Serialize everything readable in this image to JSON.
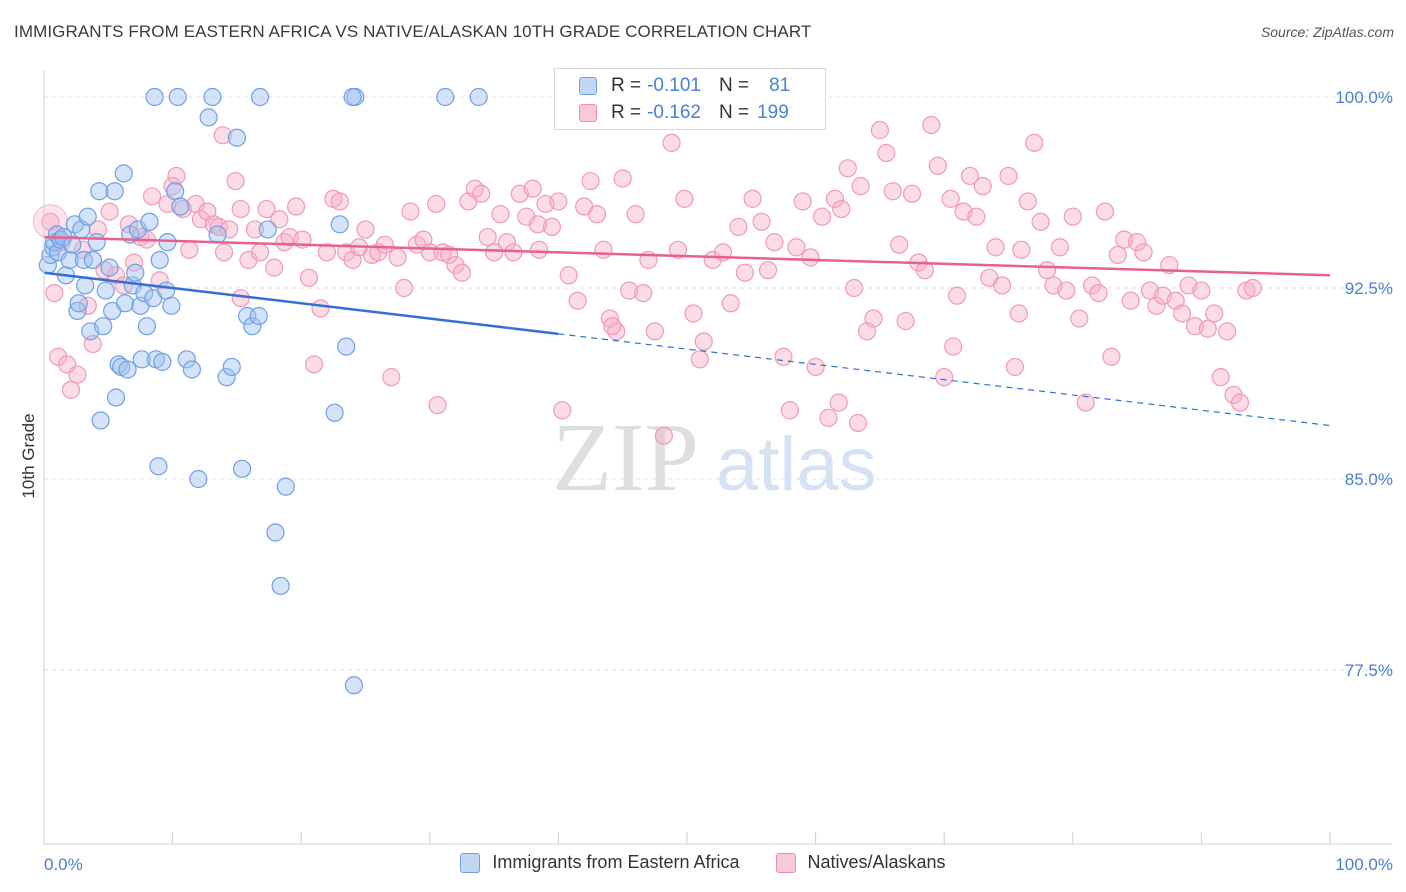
{
  "header": {
    "title": "IMMIGRANTS FROM EASTERN AFRICA VS NATIVE/ALASKAN 10TH GRADE CORRELATION CHART",
    "source": "Source: ZipAtlas.com"
  },
  "watermark": {
    "zip": "ZIP",
    "atlas": "atlas"
  },
  "legend": {
    "rows": [
      {
        "r_label": "R =",
        "r_value": "-0.101",
        "n_label": "N =",
        "n_value": "81",
        "color": "#6fa0e6"
      },
      {
        "r_label": "R =",
        "r_value": "-0.162",
        "n_label": "N =",
        "n_value": "199",
        "color": "#f08cad"
      }
    ]
  },
  "bottom_legend": {
    "items": [
      {
        "label": "Immigrants from Eastern Africa",
        "color": "#6fa0e6"
      },
      {
        "label": "Natives/Alaskans",
        "color": "#f08cad"
      }
    ]
  },
  "chart_data": {
    "type": "scatter",
    "title": "IMMIGRANTS FROM EASTERN AFRICA VS NATIVE/ALASKAN 10TH GRADE CORRELATION CHART",
    "xlabel": "",
    "ylabel": "10th Grade",
    "xlim": [
      0,
      100
    ],
    "ylim": [
      70,
      101.5
    ],
    "x_tick_labels": [
      {
        "value": 0,
        "label": "0.0%"
      },
      {
        "value": 100,
        "label": "100.0%"
      }
    ],
    "y_ticks": [
      {
        "value": 100,
        "label": "100.0%"
      },
      {
        "value": 92.5,
        "label": "92.5%"
      },
      {
        "value": 85,
        "label": "85.0%"
      },
      {
        "value": 77.5,
        "label": "77.5%"
      }
    ],
    "grid": "horizontal dashed",
    "series": [
      {
        "name": "Immigrants from Eastern Africa",
        "color": "#6fa0e6",
        "trend": {
          "x0": 0,
          "y0": 93.1,
          "x1": 40,
          "y1": 90.7,
          "dashed_to_x": 100,
          "dashed_to_y": 87.1,
          "color": "#2f6fd6"
        },
        "points": [
          [
            0.3,
            93.4
          ],
          [
            0.5,
            93.8
          ],
          [
            0.7,
            94.1
          ],
          [
            0.8,
            94.3
          ],
          [
            1.0,
            94.6
          ],
          [
            1.1,
            93.9
          ],
          [
            1.3,
            94.4
          ],
          [
            1.5,
            94.5
          ],
          [
            1.7,
            93.0
          ],
          [
            2.0,
            93.6
          ],
          [
            2.2,
            94.2
          ],
          [
            2.4,
            95.0
          ],
          [
            2.6,
            91.6
          ],
          [
            2.7,
            91.9
          ],
          [
            2.9,
            94.8
          ],
          [
            3.1,
            93.6
          ],
          [
            3.2,
            92.6
          ],
          [
            3.4,
            95.3
          ],
          [
            3.6,
            90.8
          ],
          [
            3.8,
            93.6
          ],
          [
            4.1,
            94.3
          ],
          [
            4.3,
            96.3
          ],
          [
            4.4,
            87.3
          ],
          [
            4.6,
            91.0
          ],
          [
            4.8,
            92.4
          ],
          [
            5.1,
            93.3
          ],
          [
            5.3,
            91.6
          ],
          [
            5.5,
            96.3
          ],
          [
            5.6,
            88.2
          ],
          [
            5.8,
            89.5
          ],
          [
            6.0,
            89.4
          ],
          [
            6.2,
            97.0
          ],
          [
            6.3,
            91.9
          ],
          [
            6.5,
            89.3
          ],
          [
            6.7,
            94.6
          ],
          [
            6.9,
            92.6
          ],
          [
            7.1,
            93.1
          ],
          [
            7.3,
            94.8
          ],
          [
            7.5,
            91.8
          ],
          [
            7.6,
            89.7
          ],
          [
            7.8,
            92.3
          ],
          [
            8.0,
            91.0
          ],
          [
            8.2,
            95.1
          ],
          [
            8.5,
            92.1
          ],
          [
            8.7,
            89.7
          ],
          [
            8.9,
            85.5
          ],
          [
            9.0,
            93.6
          ],
          [
            9.2,
            89.6
          ],
          [
            9.5,
            92.4
          ],
          [
            9.6,
            94.3
          ],
          [
            9.9,
            91.8
          ],
          [
            10.2,
            96.3
          ],
          [
            10.6,
            95.7
          ],
          [
            11.1,
            89.7
          ],
          [
            11.5,
            89.3
          ],
          [
            12.0,
            85.0
          ],
          [
            12.8,
            99.2
          ],
          [
            13.1,
            100.0
          ],
          [
            13.5,
            94.6
          ],
          [
            14.2,
            89.0
          ],
          [
            14.6,
            89.4
          ],
          [
            15.0,
            98.4
          ],
          [
            15.4,
            85.4
          ],
          [
            15.8,
            91.4
          ],
          [
            16.2,
            91.0
          ],
          [
            16.7,
            91.4
          ],
          [
            17.4,
            94.8
          ],
          [
            18.0,
            82.9
          ],
          [
            18.4,
            80.8
          ],
          [
            18.8,
            84.7
          ],
          [
            22.6,
            87.6
          ],
          [
            23.0,
            95.0
          ],
          [
            23.5,
            90.2
          ],
          [
            24.1,
            76.9
          ],
          [
            31.2,
            100.0
          ],
          [
            33.8,
            100.0
          ],
          [
            8.6,
            100.0
          ],
          [
            10.4,
            100.0
          ],
          [
            16.8,
            100.0
          ],
          [
            24.2,
            100.0
          ],
          [
            24.0,
            100.0
          ]
        ]
      },
      {
        "name": "Natives/Alaskans",
        "color": "#f08cad",
        "trend": {
          "x0": 0,
          "y0": 94.5,
          "x1": 100,
          "y1": 93.0,
          "color": "#e8608e"
        },
        "points": [
          [
            0.5,
            95.1
          ],
          [
            0.8,
            92.3
          ],
          [
            1.1,
            89.8
          ],
          [
            1.4,
            94.3
          ],
          [
            1.8,
            89.5
          ],
          [
            2.1,
            88.5
          ],
          [
            2.6,
            89.1
          ],
          [
            3.0,
            94.0
          ],
          [
            3.4,
            91.8
          ],
          [
            3.8,
            90.3
          ],
          [
            4.2,
            94.8
          ],
          [
            4.7,
            93.2
          ],
          [
            5.1,
            95.5
          ],
          [
            5.6,
            93.0
          ],
          [
            6.2,
            92.6
          ],
          [
            6.6,
            95.0
          ],
          [
            7.0,
            93.5
          ],
          [
            7.5,
            94.5
          ],
          [
            8.0,
            94.4
          ],
          [
            8.4,
            96.1
          ],
          [
            9.0,
            92.8
          ],
          [
            9.6,
            95.8
          ],
          [
            10.0,
            96.5
          ],
          [
            10.3,
            96.9
          ],
          [
            10.8,
            95.6
          ],
          [
            11.3,
            94.0
          ],
          [
            11.8,
            95.8
          ],
          [
            12.2,
            95.2
          ],
          [
            12.7,
            95.5
          ],
          [
            13.2,
            95.0
          ],
          [
            13.6,
            94.9
          ],
          [
            14.0,
            93.9
          ],
          [
            14.4,
            94.8
          ],
          [
            14.9,
            96.7
          ],
          [
            15.3,
            95.6
          ],
          [
            15.9,
            93.6
          ],
          [
            16.4,
            94.8
          ],
          [
            16.8,
            93.9
          ],
          [
            17.3,
            95.6
          ],
          [
            17.9,
            93.3
          ],
          [
            18.3,
            95.2
          ],
          [
            18.7,
            94.3
          ],
          [
            19.1,
            94.5
          ],
          [
            19.6,
            95.7
          ],
          [
            20.1,
            94.4
          ],
          [
            20.6,
            92.9
          ],
          [
            21.0,
            89.5
          ],
          [
            21.5,
            91.7
          ],
          [
            22.0,
            93.9
          ],
          [
            22.5,
            96.0
          ],
          [
            23.0,
            95.9
          ],
          [
            23.5,
            93.9
          ],
          [
            24.0,
            93.6
          ],
          [
            24.5,
            94.1
          ],
          [
            25.0,
            94.8
          ],
          [
            25.5,
            93.8
          ],
          [
            26.0,
            93.9
          ],
          [
            26.5,
            94.2
          ],
          [
            27.0,
            89.0
          ],
          [
            27.5,
            93.7
          ],
          [
            28.0,
            92.5
          ],
          [
            28.5,
            95.5
          ],
          [
            29.0,
            94.2
          ],
          [
            29.5,
            94.4
          ],
          [
            30.0,
            93.9
          ],
          [
            30.5,
            95.8
          ],
          [
            31.0,
            93.9
          ],
          [
            31.5,
            93.8
          ],
          [
            32.0,
            93.4
          ],
          [
            32.5,
            93.1
          ],
          [
            33.0,
            95.9
          ],
          [
            33.5,
            96.4
          ],
          [
            34.0,
            96.2
          ],
          [
            34.5,
            94.5
          ],
          [
            35.0,
            93.9
          ],
          [
            35.5,
            95.4
          ],
          [
            36.0,
            94.3
          ],
          [
            36.5,
            93.9
          ],
          [
            37.0,
            96.2
          ],
          [
            37.5,
            95.3
          ],
          [
            38.0,
            96.4
          ],
          [
            38.5,
            94.0
          ],
          [
            39.0,
            95.8
          ],
          [
            39.5,
            94.9
          ],
          [
            40.0,
            95.9
          ],
          [
            40.3,
            87.7
          ],
          [
            40.8,
            93.0
          ],
          [
            41.5,
            92.0
          ],
          [
            42.0,
            95.7
          ],
          [
            42.5,
            96.7
          ],
          [
            43.0,
            95.4
          ],
          [
            43.5,
            94.0
          ],
          [
            44.0,
            91.3
          ],
          [
            44.5,
            90.8
          ],
          [
            45.0,
            96.8
          ],
          [
            45.5,
            92.4
          ],
          [
            46.0,
            95.4
          ],
          [
            46.6,
            92.3
          ],
          [
            47.0,
            93.6
          ],
          [
            47.5,
            90.8
          ],
          [
            48.2,
            86.7
          ],
          [
            48.8,
            98.2
          ],
          [
            49.3,
            94.0
          ],
          [
            49.8,
            96.0
          ],
          [
            50.5,
            91.5
          ],
          [
            51.0,
            89.7
          ],
          [
            51.3,
            90.4
          ],
          [
            52.0,
            93.6
          ],
          [
            52.8,
            93.9
          ],
          [
            53.4,
            91.9
          ],
          [
            54.0,
            94.9
          ],
          [
            54.5,
            93.1
          ],
          [
            55.1,
            96.0
          ],
          [
            55.8,
            95.1
          ],
          [
            56.3,
            93.2
          ],
          [
            56.8,
            94.3
          ],
          [
            57.5,
            89.8
          ],
          [
            58.0,
            87.7
          ],
          [
            58.5,
            94.1
          ],
          [
            59.0,
            95.9
          ],
          [
            59.6,
            93.7
          ],
          [
            60.0,
            89.4
          ],
          [
            60.5,
            95.3
          ],
          [
            61.0,
            87.4
          ],
          [
            61.5,
            96.0
          ],
          [
            62.0,
            95.6
          ],
          [
            62.5,
            97.2
          ],
          [
            63.0,
            92.5
          ],
          [
            63.5,
            96.5
          ],
          [
            64.0,
            90.8
          ],
          [
            64.5,
            91.3
          ],
          [
            65.0,
            98.7
          ],
          [
            65.5,
            97.8
          ],
          [
            66.0,
            96.3
          ],
          [
            66.5,
            94.2
          ],
          [
            67.0,
            91.2
          ],
          [
            67.5,
            96.2
          ],
          [
            68.0,
            93.5
          ],
          [
            68.5,
            93.2
          ],
          [
            69.0,
            98.9
          ],
          [
            69.5,
            97.3
          ],
          [
            70.0,
            89.0
          ],
          [
            70.5,
            96.0
          ],
          [
            71.0,
            92.2
          ],
          [
            71.5,
            95.5
          ],
          [
            72.0,
            96.9
          ],
          [
            72.5,
            95.3
          ],
          [
            73.0,
            96.5
          ],
          [
            73.5,
            92.9
          ],
          [
            74.0,
            94.1
          ],
          [
            74.5,
            92.6
          ],
          [
            75.0,
            96.9
          ],
          [
            75.5,
            89.4
          ],
          [
            76.0,
            94.0
          ],
          [
            76.5,
            95.9
          ],
          [
            77.0,
            98.2
          ],
          [
            77.5,
            95.1
          ],
          [
            78.0,
            93.2
          ],
          [
            78.5,
            92.6
          ],
          [
            79.0,
            94.1
          ],
          [
            79.5,
            92.4
          ],
          [
            80.0,
            95.3
          ],
          [
            80.5,
            91.3
          ],
          [
            81.0,
            88.0
          ],
          [
            81.5,
            92.6
          ],
          [
            82.0,
            92.3
          ],
          [
            82.5,
            95.5
          ],
          [
            83.0,
            89.8
          ],
          [
            83.5,
            93.8
          ],
          [
            84.0,
            94.4
          ],
          [
            84.5,
            92.0
          ],
          [
            85.0,
            94.3
          ],
          [
            85.5,
            93.9
          ],
          [
            86.0,
            92.4
          ],
          [
            86.5,
            91.8
          ],
          [
            87.0,
            92.2
          ],
          [
            87.5,
            93.4
          ],
          [
            88.0,
            92.0
          ],
          [
            88.5,
            91.5
          ],
          [
            89.0,
            92.6
          ],
          [
            89.5,
            91.0
          ],
          [
            90.0,
            92.4
          ],
          [
            90.5,
            90.9
          ],
          [
            91.0,
            91.5
          ],
          [
            91.5,
            89.0
          ],
          [
            92.0,
            90.8
          ],
          [
            92.5,
            88.3
          ],
          [
            93.0,
            88.0
          ],
          [
            93.5,
            92.4
          ],
          [
            94.0,
            92.5
          ],
          [
            61.8,
            88.0
          ],
          [
            63.3,
            87.2
          ],
          [
            30.6,
            87.9
          ],
          [
            44.2,
            91.0
          ],
          [
            70.7,
            90.2
          ],
          [
            75.8,
            91.5
          ],
          [
            13.9,
            98.5
          ],
          [
            15.3,
            92.1
          ],
          [
            38.4,
            95.0
          ]
        ]
      }
    ]
  }
}
